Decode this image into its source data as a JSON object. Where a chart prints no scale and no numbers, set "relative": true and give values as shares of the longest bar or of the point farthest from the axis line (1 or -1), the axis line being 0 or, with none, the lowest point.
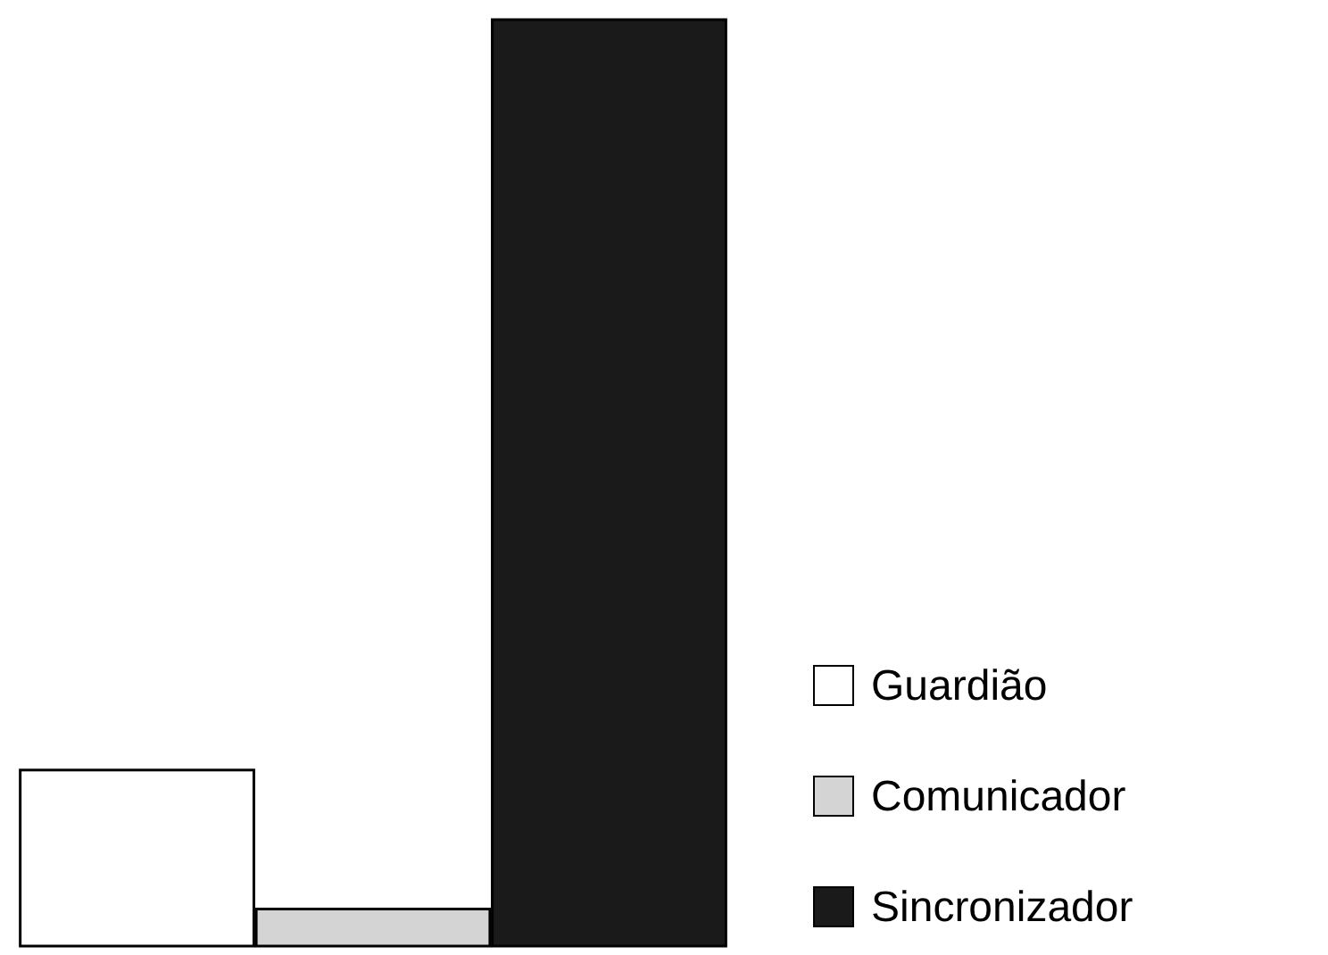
{
  "chart_data": {
    "type": "bar",
    "relative": true,
    "categories": [
      null
    ],
    "series": [
      {
        "name": "Guardião",
        "color": "#ffffff",
        "values": [
          0.19
        ]
      },
      {
        "name": "Comunicador",
        "color": "#d4d4d4",
        "values": [
          0.04
        ]
      },
      {
        "name": "Sincronizador",
        "color": "#1a1a1a",
        "values": [
          1
        ]
      }
    ],
    "legend": "right"
  }
}
